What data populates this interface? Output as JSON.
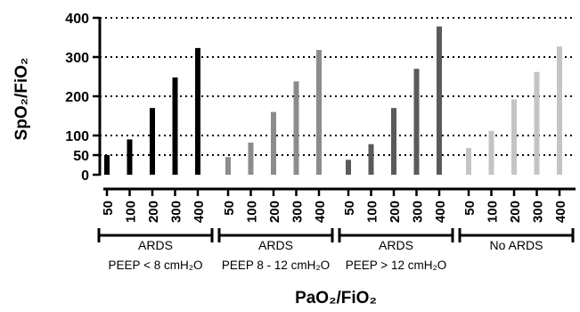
{
  "chart_data": {
    "type": "bar",
    "ylabel": "SpO₂/FiO₂",
    "xlabel": "PaO₂/FiO₂",
    "ylim": [
      0,
      400
    ],
    "yticks": [
      0,
      50,
      100,
      200,
      300,
      400
    ],
    "grid": "horizontal dotted at 50, 100, 200, 300, 400",
    "categories": [
      "50",
      "100",
      "200",
      "300",
      "400"
    ],
    "series": [
      {
        "name": "ARDS PEEP < 8 cmH₂O",
        "group_label": "ARDS",
        "group_sublabel": "PEEP < 8 cmH₂O",
        "color": "#000000",
        "values": [
          50,
          90,
          170,
          248,
          323
        ]
      },
      {
        "name": "ARDS PEEP 8 - 12 cmH₂O",
        "group_label": "ARDS",
        "group_sublabel": "PEEP 8 - 12 cmH₂O",
        "color": "#8c8c8c",
        "values": [
          45,
          82,
          160,
          238,
          318
        ]
      },
      {
        "name": "ARDS PEEP > 12 cmH₂O",
        "group_label": "ARDS",
        "group_sublabel": "PEEP > 12 cmH₂O",
        "color": "#5a5a5a",
        "values": [
          38,
          78,
          170,
          270,
          378
        ]
      },
      {
        "name": "No ARDS",
        "group_label": "No ARDS",
        "group_sublabel": "",
        "color": "#c4c4c4",
        "values": [
          68,
          112,
          192,
          262,
          327
        ]
      }
    ]
  }
}
